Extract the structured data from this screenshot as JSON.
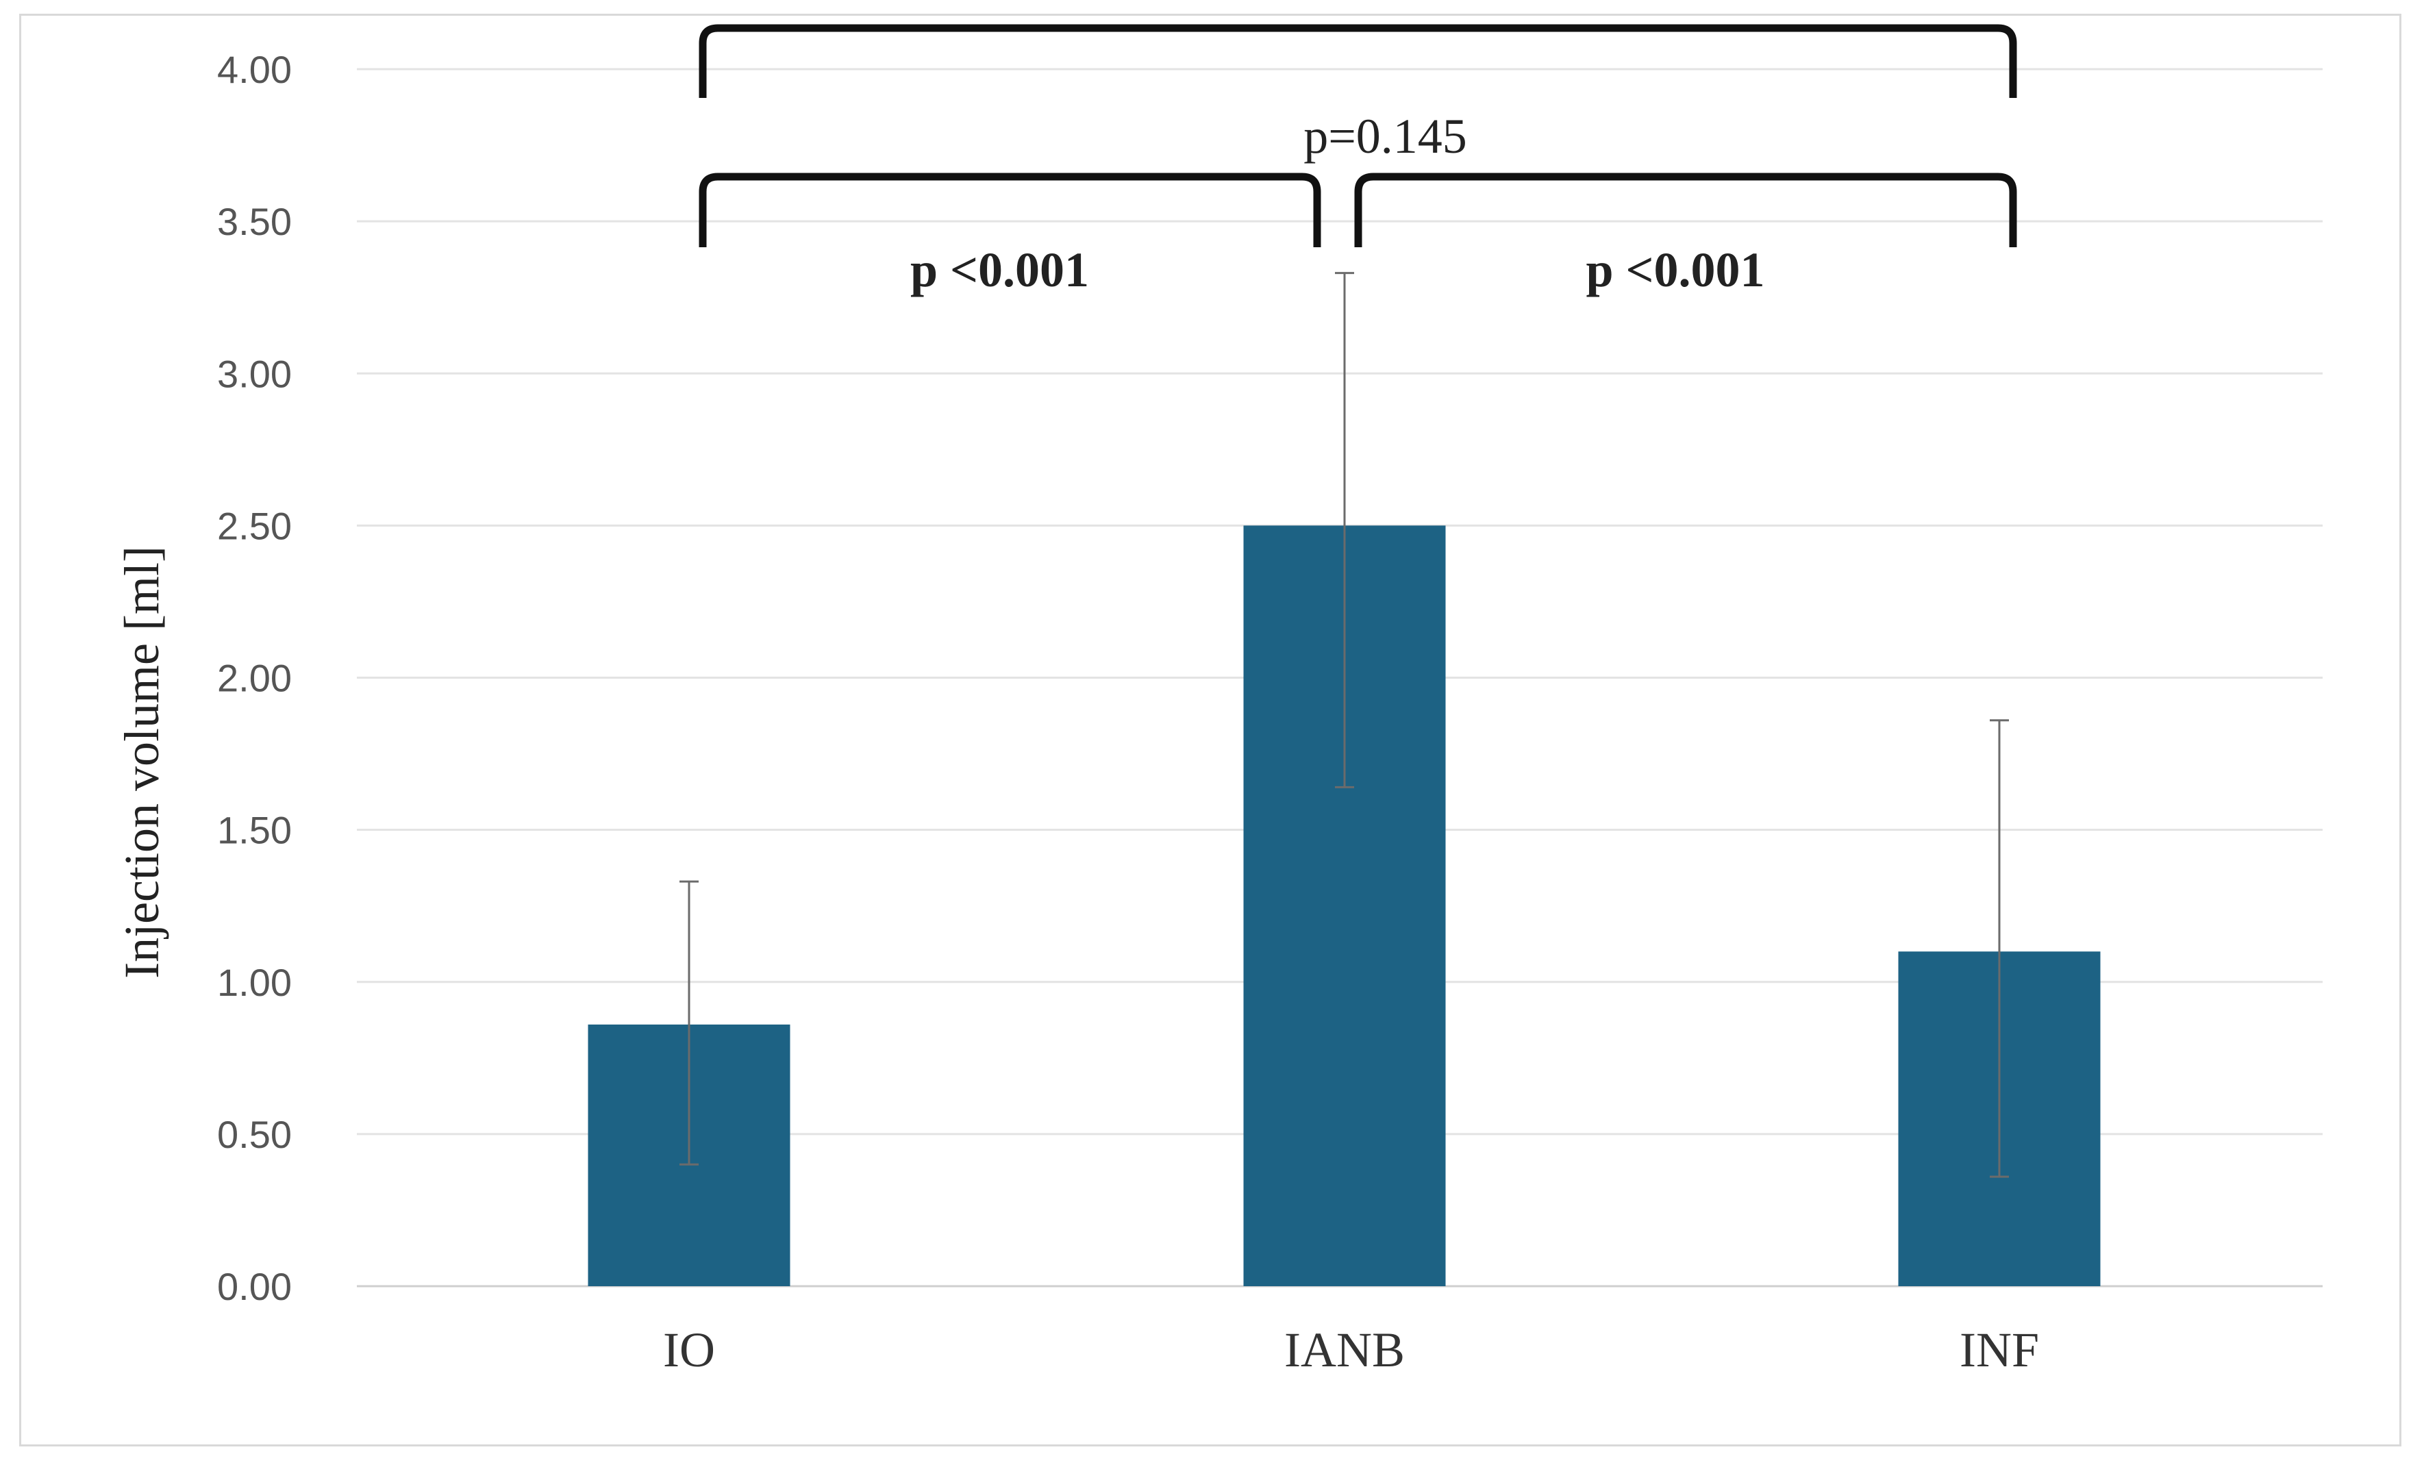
{
  "chart_data": {
    "type": "bar",
    "categories": [
      "IO",
      "IANB",
      "INF"
    ],
    "values": [
      0.86,
      2.5,
      1.1
    ],
    "error_low": [
      0.4,
      1.64,
      0.36
    ],
    "error_high": [
      1.33,
      3.33,
      1.86
    ],
    "ylabel": "Injection volume [ml]",
    "xlabel": "",
    "ylim": [
      0,
      4.0
    ],
    "yticks": [
      "0.00",
      "0.50",
      "1.00",
      "1.50",
      "2.00",
      "2.50",
      "3.00",
      "3.50",
      "4.00"
    ],
    "grid": true,
    "legend": "none",
    "bar_color": "#1d6284",
    "gridline_color": "#e3e3e3",
    "errorbar_color": "#6b6b6b",
    "annotations": [
      {
        "text": "p <0.001",
        "from": "IO",
        "to": "IANB",
        "level": "lower"
      },
      {
        "text": "p <0.001",
        "from": "IANB",
        "to": "INF",
        "level": "lower"
      },
      {
        "text": "p=0.145",
        "from": "IO",
        "to": "INF",
        "level": "upper"
      }
    ]
  }
}
